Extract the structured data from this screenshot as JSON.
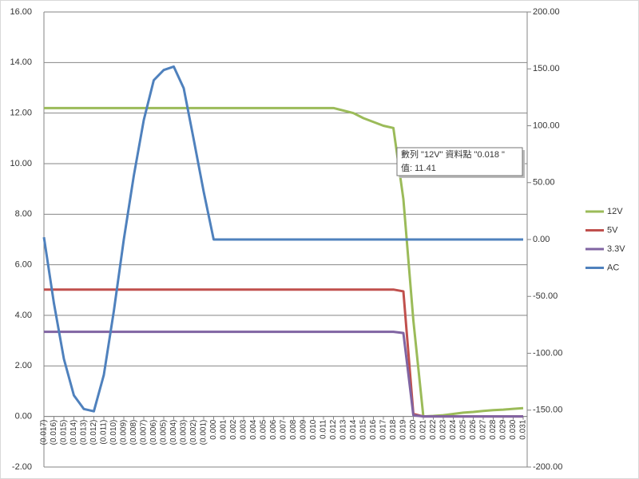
{
  "chart_data": {
    "type": "line",
    "categories": [
      "(0.017)",
      "(0.016)",
      "(0.015)",
      "(0.014)",
      "(0.013)",
      "(0.012)",
      "(0.011)",
      "(0.010)",
      "(0.009)",
      "(0.008)",
      "(0.007)",
      "(0.006)",
      "(0.005)",
      "(0.004)",
      "(0.003)",
      "(0.002)",
      "(0.001)",
      "0.000",
      "0.001",
      "0.002",
      "0.003",
      "0.004",
      "0.005",
      "0.006",
      "0.007",
      "0.008",
      "0.009",
      "0.010",
      "0.011",
      "0.012",
      "0.013",
      "0.014",
      "0.015",
      "0.016",
      "0.017",
      "0.018",
      "0.019",
      "0.020",
      "0.021",
      "0.022",
      "0.023",
      "0.024",
      "0.025",
      "0.026",
      "0.027",
      "0.028",
      "0.029",
      "0.030",
      "0.031"
    ],
    "series": [
      {
        "name": "12V",
        "color": "#9bbb59",
        "values": [
          12.2,
          12.2,
          12.2,
          12.2,
          12.2,
          12.2,
          12.2,
          12.2,
          12.2,
          12.2,
          12.2,
          12.2,
          12.2,
          12.2,
          12.2,
          12.2,
          12.2,
          12.2,
          12.2,
          12.2,
          12.2,
          12.2,
          12.2,
          12.2,
          12.2,
          12.2,
          12.2,
          12.2,
          12.2,
          12.2,
          12.1,
          12.0,
          11.8,
          11.65,
          11.5,
          11.41,
          8.6,
          3.8,
          0.0,
          0.02,
          0.05,
          0.1,
          0.15,
          0.18,
          0.22,
          0.25,
          0.27,
          0.3,
          0.33
        ]
      },
      {
        "name": "5V",
        "color": "#c0504d",
        "values": [
          5.02,
          5.02,
          5.02,
          5.02,
          5.02,
          5.02,
          5.02,
          5.02,
          5.02,
          5.02,
          5.02,
          5.02,
          5.02,
          5.02,
          5.02,
          5.02,
          5.02,
          5.02,
          5.02,
          5.02,
          5.02,
          5.02,
          5.02,
          5.02,
          5.02,
          5.02,
          5.02,
          5.02,
          5.02,
          5.02,
          5.02,
          5.02,
          5.02,
          5.02,
          5.02,
          5.02,
          4.95,
          0.1,
          0,
          0,
          0,
          0,
          0,
          0,
          0,
          0,
          0,
          0,
          0
        ]
      },
      {
        "name": "3.3V",
        "color": "#8064a2",
        "values": [
          3.35,
          3.35,
          3.35,
          3.35,
          3.35,
          3.35,
          3.35,
          3.35,
          3.35,
          3.35,
          3.35,
          3.35,
          3.35,
          3.35,
          3.35,
          3.35,
          3.35,
          3.35,
          3.35,
          3.35,
          3.35,
          3.35,
          3.35,
          3.35,
          3.35,
          3.35,
          3.35,
          3.35,
          3.35,
          3.35,
          3.35,
          3.35,
          3.35,
          3.35,
          3.35,
          3.35,
          3.3,
          0.05,
          0,
          0,
          0,
          0,
          0,
          0,
          0,
          0,
          0,
          0,
          0
        ]
      },
      {
        "name": "AC",
        "color": "#4f81bd",
        "axis": "y2",
        "values": [
          2,
          -56,
          -105,
          -137,
          -149,
          -151,
          -119,
          -63,
          0,
          56,
          105,
          140,
          149,
          152,
          133,
          88,
          42,
          0,
          0,
          0,
          0,
          0,
          0,
          0,
          0,
          0,
          0,
          0,
          0,
          0,
          0,
          0,
          0,
          0,
          0,
          0,
          0,
          0,
          0,
          0,
          0,
          0,
          0,
          0,
          0,
          0,
          0,
          0,
          0
        ]
      }
    ],
    "ylim": [
      -2,
      16
    ],
    "yticks": [
      {
        "value": -2,
        "label": "-2.00"
      },
      {
        "value": 0,
        "label": "0.00"
      },
      {
        "value": 2,
        "label": "2.00"
      },
      {
        "value": 4,
        "label": "4.00"
      },
      {
        "value": 6,
        "label": "6.00"
      },
      {
        "value": 8,
        "label": "8.00"
      },
      {
        "value": 10,
        "label": "10.00"
      },
      {
        "value": 12,
        "label": "12.00"
      },
      {
        "value": 14,
        "label": "14.00"
      },
      {
        "value": 16,
        "label": "16.00"
      }
    ],
    "y2lim": [
      -200,
      200
    ],
    "y2ticks": [
      {
        "value": -200,
        "label": "-200.00"
      },
      {
        "value": -150,
        "label": "-150.00"
      },
      {
        "value": -100,
        "label": "-100.00"
      },
      {
        "value": -50,
        "label": "-50.00"
      },
      {
        "value": 0,
        "label": "0.00"
      },
      {
        "value": 50,
        "label": "50.00"
      },
      {
        "value": 100,
        "label": "100.00"
      },
      {
        "value": 150,
        "label": "150.00"
      },
      {
        "value": 200,
        "label": "200.00"
      }
    ],
    "grid": true,
    "legend": "right",
    "annotations": [
      {
        "text": "數列 \"12V\" 資料點 \"0.018 \""
      },
      {
        "text": "值: 11.41"
      }
    ]
  }
}
